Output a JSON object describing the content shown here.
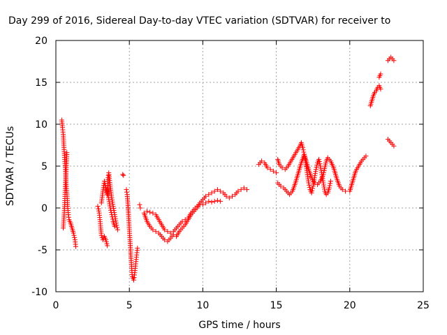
{
  "chart_data": {
    "type": "scatter",
    "title": "Day 299 of 2016, Sidereal Day-to-day VTEC variation (SDTVAR) for receiver to",
    "xlabel": "GPS time / hours",
    "ylabel": "SDTVAR / TECUs",
    "xlim": [
      0,
      25
    ],
    "ylim": [
      -10,
      20
    ],
    "xticks": [
      0,
      5,
      10,
      15,
      20,
      25
    ],
    "xtick_labels": [
      "0",
      "5",
      "10",
      "15",
      "20",
      "25"
    ],
    "yticks": [
      -10,
      -5,
      0,
      5,
      10,
      15,
      20
    ],
    "ytick_labels": [
      "-10",
      "-5",
      "0",
      "5",
      "10",
      "15",
      "20"
    ],
    "grid": true,
    "marker": "+",
    "color": "#ff0000",
    "series": [
      {
        "name": "SDTVAR",
        "segments": [
          [
            [
              0.4,
              10.5
            ],
            [
              0.45,
              9.6
            ],
            [
              0.5,
              8.8
            ],
            [
              0.55,
              7.2
            ],
            [
              0.6,
              5.8
            ],
            [
              0.65,
              4.6
            ],
            [
              0.7,
              3.0
            ],
            [
              0.75,
              1.8
            ],
            [
              0.8,
              0.2
            ],
            [
              0.85,
              -0.8
            ],
            [
              0.9,
              -1.4
            ],
            [
              1.0,
              -1.8
            ],
            [
              1.1,
              -2.4
            ],
            [
              1.2,
              -3.0
            ],
            [
              1.3,
              -3.8
            ],
            [
              1.35,
              -4.6
            ]
          ],
          [
            [
              0.5,
              -2.4
            ],
            [
              0.55,
              -1.2
            ],
            [
              0.6,
              0.4
            ],
            [
              0.62,
              1.6
            ],
            [
              0.65,
              2.8
            ],
            [
              0.7,
              4.4
            ],
            [
              0.75,
              6.6
            ]
          ],
          [
            [
              2.85,
              0.2
            ],
            [
              2.9,
              -0.1
            ],
            [
              2.95,
              -0.6
            ],
            [
              3.0,
              -1.4
            ],
            [
              3.05,
              -2.4
            ],
            [
              3.1,
              -3.3
            ],
            [
              3.2,
              -3.8
            ],
            [
              3.3,
              -3.4
            ],
            [
              3.4,
              -3.8
            ],
            [
              3.5,
              -4.5
            ]
          ],
          [
            [
              3.1,
              0.6
            ],
            [
              3.2,
              2.0
            ],
            [
              3.3,
              3.2
            ],
            [
              3.4,
              2.4
            ],
            [
              3.5,
              1.6
            ],
            [
              3.55,
              3.6
            ],
            [
              3.6,
              4.2
            ],
            [
              3.7,
              2.6
            ],
            [
              3.8,
              1.2
            ],
            [
              3.9,
              0.2
            ],
            [
              4.0,
              -0.8
            ],
            [
              4.1,
              -1.8
            ],
            [
              4.2,
              -2.6
            ]
          ],
          [
            [
              3.5,
              2.2
            ],
            [
              3.6,
              1.0
            ],
            [
              3.7,
              0.0
            ],
            [
              3.8,
              -0.8
            ],
            [
              3.9,
              -1.6
            ],
            [
              4.0,
              -2.2
            ]
          ],
          [
            [
              4.55,
              4.0
            ],
            [
              4.6,
              3.9
            ]
          ],
          [
            [
              4.8,
              2.2
            ],
            [
              4.85,
              1.6
            ],
            [
              4.9,
              0.5
            ],
            [
              4.95,
              -1.0
            ],
            [
              5.0,
              -2.6
            ],
            [
              5.05,
              -4.0
            ],
            [
              5.1,
              -5.6
            ],
            [
              5.15,
              -7.0
            ],
            [
              5.2,
              -8.2
            ],
            [
              5.3,
              -8.6
            ],
            [
              5.35,
              -8.0
            ],
            [
              5.4,
              -7.2
            ],
            [
              5.45,
              -6.4
            ],
            [
              5.5,
              -5.6
            ],
            [
              5.55,
              -4.8
            ]
          ],
          [
            [
              5.7,
              0.4
            ],
            [
              5.75,
              0.0
            ]
          ],
          [
            [
              6.0,
              -0.6
            ],
            [
              6.2,
              -1.6
            ],
            [
              6.4,
              -2.2
            ],
            [
              6.6,
              -2.6
            ],
            [
              6.8,
              -2.8
            ],
            [
              7.0,
              -3.0
            ],
            [
              7.2,
              -3.4
            ],
            [
              7.4,
              -3.8
            ],
            [
              7.6,
              -4.0
            ],
            [
              7.8,
              -3.6
            ],
            [
              8.0,
              -3.2
            ],
            [
              8.2,
              -3.4
            ],
            [
              8.4,
              -2.8
            ],
            [
              8.6,
              -2.4
            ],
            [
              8.8,
              -2.0
            ],
            [
              9.0,
              -1.4
            ],
            [
              9.2,
              -0.8
            ],
            [
              9.4,
              -0.4
            ],
            [
              9.6,
              0.0
            ],
            [
              9.8,
              0.6
            ],
            [
              10.0,
              1.0
            ],
            [
              10.2,
              1.4
            ],
            [
              10.4,
              1.6
            ],
            [
              10.6,
              1.8
            ],
            [
              10.8,
              2.0
            ],
            [
              11.0,
              2.2
            ],
            [
              11.2,
              2.0
            ],
            [
              11.4,
              1.8
            ],
            [
              11.6,
              1.4
            ],
            [
              11.8,
              1.2
            ],
            [
              12.0,
              1.4
            ],
            [
              12.2,
              1.6
            ],
            [
              12.4,
              2.0
            ],
            [
              12.6,
              2.2
            ],
            [
              12.8,
              2.4
            ],
            [
              13.0,
              2.2
            ]
          ],
          [
            [
              6.2,
              -0.4
            ],
            [
              6.4,
              -0.5
            ],
            [
              6.6,
              -0.6
            ],
            [
              6.8,
              -0.8
            ],
            [
              7.0,
              -1.4
            ],
            [
              7.2,
              -2.0
            ],
            [
              7.4,
              -2.6
            ],
            [
              7.6,
              -2.8
            ],
            [
              7.8,
              -3.0
            ],
            [
              8.0,
              -2.8
            ],
            [
              8.2,
              -2.4
            ],
            [
              8.4,
              -2.0
            ],
            [
              8.6,
              -1.6
            ],
            [
              8.8,
              -1.4
            ],
            [
              9.0,
              -1.2
            ],
            [
              9.2,
              -0.6
            ],
            [
              9.4,
              -0.2
            ],
            [
              9.6,
              0.2
            ],
            [
              9.8,
              0.4
            ],
            [
              10.0,
              0.4
            ],
            [
              10.2,
              0.6
            ],
            [
              10.4,
              0.8
            ],
            [
              10.6,
              0.7
            ],
            [
              10.8,
              0.8
            ],
            [
              11.0,
              0.9
            ],
            [
              11.2,
              0.8
            ]
          ],
          [
            [
              13.8,
              5.2
            ],
            [
              14.0,
              5.6
            ],
            [
              14.2,
              5.4
            ],
            [
              14.4,
              4.8
            ],
            [
              14.6,
              4.6
            ],
            [
              14.8,
              4.4
            ],
            [
              15.0,
              4.2
            ]
          ],
          [
            [
              15.1,
              5.8
            ],
            [
              15.2,
              5.2
            ],
            [
              15.4,
              4.8
            ],
            [
              15.6,
              4.6
            ],
            [
              15.8,
              5.0
            ],
            [
              16.0,
              5.6
            ],
            [
              16.2,
              6.2
            ],
            [
              16.4,
              6.8
            ],
            [
              16.6,
              7.4
            ],
            [
              16.7,
              7.8
            ],
            [
              16.8,
              7.2
            ],
            [
              16.9,
              6.4
            ],
            [
              17.0,
              5.4
            ],
            [
              17.1,
              4.2
            ],
            [
              17.2,
              3.0
            ],
            [
              17.3,
              2.2
            ],
            [
              17.4,
              1.8
            ],
            [
              17.5,
              2.6
            ],
            [
              17.6,
              3.6
            ],
            [
              17.7,
              4.6
            ],
            [
              17.8,
              5.4
            ],
            [
              17.9,
              5.8
            ],
            [
              18.0,
              5.0
            ],
            [
              18.1,
              4.0
            ],
            [
              18.2,
              3.0
            ],
            [
              18.3,
              2.0
            ],
            [
              18.4,
              1.6
            ],
            [
              18.5,
              1.8
            ],
            [
              18.6,
              2.4
            ],
            [
              18.7,
              3.2
            ]
          ],
          [
            [
              15.1,
              3.0
            ],
            [
              15.3,
              2.6
            ],
            [
              15.5,
              2.4
            ],
            [
              15.7,
              2.0
            ],
            [
              15.9,
              1.6
            ],
            [
              16.1,
              2.0
            ],
            [
              16.3,
              3.0
            ],
            [
              16.5,
              4.2
            ],
            [
              16.7,
              5.4
            ],
            [
              16.9,
              6.4
            ],
            [
              17.0,
              5.8
            ],
            [
              17.2,
              4.6
            ],
            [
              17.4,
              3.6
            ],
            [
              17.6,
              3.0
            ],
            [
              17.8,
              2.8
            ],
            [
              18.0,
              3.2
            ],
            [
              18.2,
              4.0
            ],
            [
              18.4,
              5.6
            ],
            [
              18.5,
              6.0
            ],
            [
              18.7,
              5.6
            ],
            [
              18.9,
              4.8
            ],
            [
              19.1,
              3.6
            ],
            [
              19.3,
              2.6
            ],
            [
              19.5,
              2.2
            ],
            [
              19.7,
              2.0
            ]
          ],
          [
            [
              20.0,
              2.0
            ],
            [
              20.2,
              3.2
            ],
            [
              20.4,
              4.4
            ],
            [
              20.6,
              5.0
            ],
            [
              20.8,
              5.6
            ],
            [
              21.0,
              6.0
            ],
            [
              21.1,
              6.2
            ]
          ],
          [
            [
              21.4,
              12.2
            ],
            [
              21.5,
              12.8
            ],
            [
              21.6,
              13.4
            ],
            [
              21.7,
              13.8
            ],
            [
              21.8,
              14.0
            ],
            [
              21.9,
              14.4
            ],
            [
              22.0,
              14.6
            ],
            [
              22.1,
              14.2
            ]
          ],
          [
            [
              22.0,
              15.6
            ],
            [
              22.05,
              15.8
            ],
            [
              22.1,
              16.0
            ]
          ],
          [
            [
              22.6,
              8.2
            ],
            [
              22.7,
              8.0
            ],
            [
              22.8,
              7.8
            ],
            [
              22.9,
              7.6
            ],
            [
              23.0,
              7.4
            ]
          ],
          [
            [
              22.6,
              17.6
            ],
            [
              22.7,
              17.8
            ],
            [
              22.8,
              18.0
            ],
            [
              22.9,
              17.8
            ],
            [
              23.0,
              17.6
            ]
          ]
        ]
      }
    ]
  }
}
